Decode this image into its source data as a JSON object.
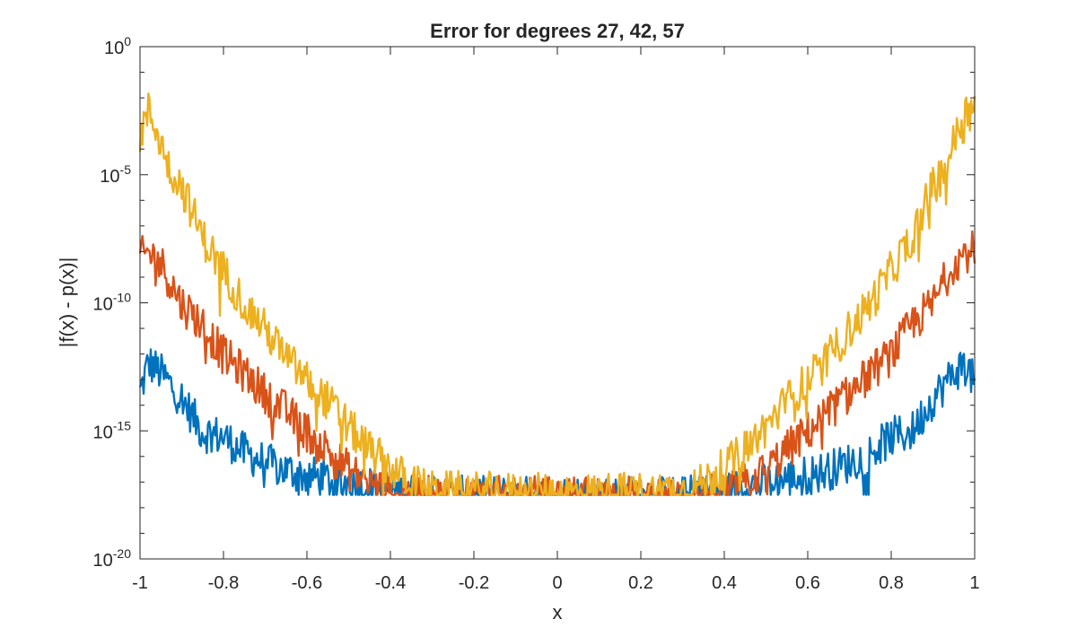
{
  "chart_data": {
    "type": "line",
    "title": "Error for degrees 27, 42, 57",
    "xlabel": "x",
    "ylabel": "|f(x) - p(x)|",
    "xlim": [
      -1,
      1
    ],
    "ylim_log10": [
      -20,
      0
    ],
    "yscale": "log",
    "grid": false,
    "box": true,
    "xticks": [
      {
        "value": -1,
        "label": "-1"
      },
      {
        "value": -0.8,
        "label": "-0.8"
      },
      {
        "value": -0.6,
        "label": "-0.6"
      },
      {
        "value": -0.4,
        "label": "-0.4"
      },
      {
        "value": -0.2,
        "label": "-0.2"
      },
      {
        "value": 0,
        "label": "0"
      },
      {
        "value": 0.2,
        "label": "0.2"
      },
      {
        "value": 0.4,
        "label": "0.4"
      },
      {
        "value": 0.6,
        "label": "0.6"
      },
      {
        "value": 0.8,
        "label": "0.8"
      },
      {
        "value": 1,
        "label": "1"
      }
    ],
    "yticks": [
      {
        "exp": -20,
        "base": "10",
        "sup": "-20"
      },
      {
        "exp": -15,
        "base": "10",
        "sup": "-15"
      },
      {
        "exp": -10,
        "base": "10",
        "sup": "-10"
      },
      {
        "exp": -5,
        "base": "10",
        "sup": "-5"
      },
      {
        "exp": 0,
        "base": "10",
        "sup": "0"
      }
    ],
    "series": [
      {
        "color": "#0072BD",
        "x": [
          -1,
          -0.98,
          -0.95,
          -0.9,
          -0.85,
          -0.8,
          -0.75,
          -0.7,
          -0.65,
          -0.6,
          -0.5,
          -0.4,
          -0.3,
          0,
          0.3,
          0.4,
          0.5,
          0.6,
          0.65,
          0.7,
          0.75,
          0.8,
          0.85,
          0.9,
          0.95,
          0.98,
          1
        ],
        "log10_y": [
          -13.3,
          -12.1,
          -12.5,
          -13.5,
          -14.8,
          -15.0,
          -15.6,
          -16.0,
          -16.3,
          -16.5,
          -16.8,
          -17.1,
          -17.3,
          -17.3,
          -17.3,
          -17.1,
          -16.8,
          -16.5,
          -16.3,
          -16.0,
          -15.6,
          -15.0,
          -14.8,
          -13.5,
          -12.5,
          -12.1,
          -13.0
        ]
      },
      {
        "color": "#D95319",
        "x": [
          -1,
          -0.98,
          -0.95,
          -0.9,
          -0.85,
          -0.8,
          -0.75,
          -0.7,
          -0.65,
          -0.6,
          -0.55,
          -0.5,
          -0.45,
          -0.4,
          -0.3,
          0,
          0.3,
          0.4,
          0.45,
          0.5,
          0.55,
          0.6,
          0.65,
          0.7,
          0.75,
          0.8,
          0.85,
          0.9,
          0.95,
          0.98,
          1
        ],
        "log10_y": [
          -8.0,
          -7.8,
          -8.2,
          -9.8,
          -10.6,
          -11.8,
          -12.5,
          -13.3,
          -14.0,
          -14.8,
          -15.5,
          -16.3,
          -16.8,
          -17.2,
          -17.3,
          -17.3,
          -17.3,
          -17.2,
          -16.8,
          -16.3,
          -15.5,
          -14.8,
          -14.0,
          -13.3,
          -12.5,
          -11.8,
          -10.6,
          -9.8,
          -8.2,
          -7.8,
          -7.7
        ]
      },
      {
        "color": "#EDB120",
        "x": [
          -1,
          -0.98,
          -0.96,
          -0.93,
          -0.9,
          -0.85,
          -0.8,
          -0.75,
          -0.7,
          -0.65,
          -0.6,
          -0.55,
          -0.5,
          -0.45,
          -0.4,
          -0.35,
          -0.3,
          0,
          0.3,
          0.35,
          0.4,
          0.45,
          0.5,
          0.55,
          0.6,
          0.65,
          0.7,
          0.75,
          0.8,
          0.85,
          0.9,
          0.93,
          0.96,
          0.98,
          1
        ],
        "log10_y": [
          -3.2,
          -2.3,
          -3.0,
          -4.5,
          -5.2,
          -7.2,
          -8.5,
          -9.8,
          -10.8,
          -11.9,
          -12.8,
          -13.6,
          -14.6,
          -15.5,
          -16.2,
          -16.8,
          -17.1,
          -17.2,
          -17.1,
          -16.8,
          -16.2,
          -15.5,
          -14.6,
          -13.6,
          -12.8,
          -11.9,
          -10.8,
          -9.8,
          -8.5,
          -7.2,
          -5.2,
          -4.5,
          -3.0,
          -2.3,
          -2.4
        ]
      }
    ],
    "noise_floor_log10": -17.5
  }
}
